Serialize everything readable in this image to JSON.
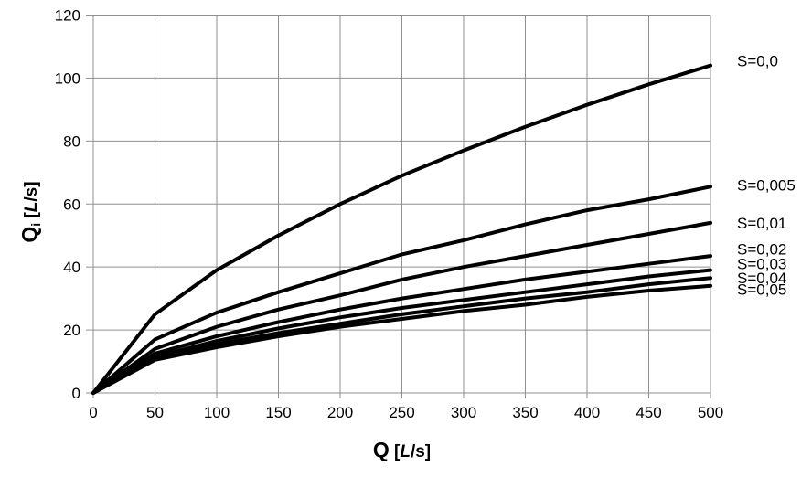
{
  "colors": {
    "background": "#ffffff",
    "grid": "#8f8f8f",
    "curve": "#000000",
    "text": "#000000"
  },
  "axes": {
    "x": {
      "symbol": "Q",
      "unit_open": " [",
      "unit_letter": "L",
      "unit_close": "/s]"
    },
    "y": {
      "symbol": "Q",
      "subscript": "i",
      "unit_open": " [",
      "unit_letter": "L",
      "unit_close": "/s]"
    }
  },
  "chart_data": {
    "type": "line",
    "title": "",
    "xlabel": "Q [L/s]",
    "ylabel": "Qi [L/s]",
    "xlim": [
      0,
      500
    ],
    "ylim": [
      0,
      120
    ],
    "x_ticks": [
      0,
      50,
      100,
      150,
      200,
      250,
      300,
      350,
      400,
      450,
      500
    ],
    "y_ticks": [
      0,
      20,
      40,
      60,
      80,
      100,
      120
    ],
    "grid": true,
    "legend_position": "labels-at-curve-ends-right",
    "x": [
      0,
      50,
      100,
      150,
      200,
      250,
      300,
      350,
      400,
      450,
      500
    ],
    "series": [
      {
        "name": "S=0,0",
        "values": [
          0,
          25,
          39,
          50,
          60,
          69,
          77,
          84.5,
          91.5,
          98,
          104
        ],
        "label_value": 105.5
      },
      {
        "name": "S=0,005",
        "values": [
          0,
          17,
          25.5,
          32,
          38,
          44,
          48.5,
          53.5,
          58,
          61.5,
          65.5
        ],
        "label_value": 66
      },
      {
        "name": "S=0,01",
        "values": [
          0,
          14,
          21,
          26.5,
          31,
          36,
          40,
          43.5,
          47,
          50.5,
          54
        ],
        "label_value": 54
      },
      {
        "name": "S=0,02",
        "values": [
          0,
          12.5,
          18,
          22.5,
          26.5,
          30,
          33,
          36,
          38.5,
          41,
          43.5
        ],
        "label_value": 45.7
      },
      {
        "name": "S=0,03",
        "values": [
          0,
          11.5,
          16.5,
          20.5,
          24,
          27,
          29.5,
          32,
          34.5,
          37,
          39
        ],
        "label_value": 41.1
      },
      {
        "name": "S=0,04",
        "values": [
          0,
          11,
          15.5,
          19,
          22,
          25,
          27.5,
          30,
          32,
          34.5,
          36.5
        ],
        "label_value": 36.6
      },
      {
        "name": "S=0,05",
        "values": [
          0,
          10.5,
          14.5,
          18,
          21,
          23.5,
          26,
          28,
          30.5,
          32.5,
          34
        ],
        "label_value": 32.9
      }
    ]
  }
}
